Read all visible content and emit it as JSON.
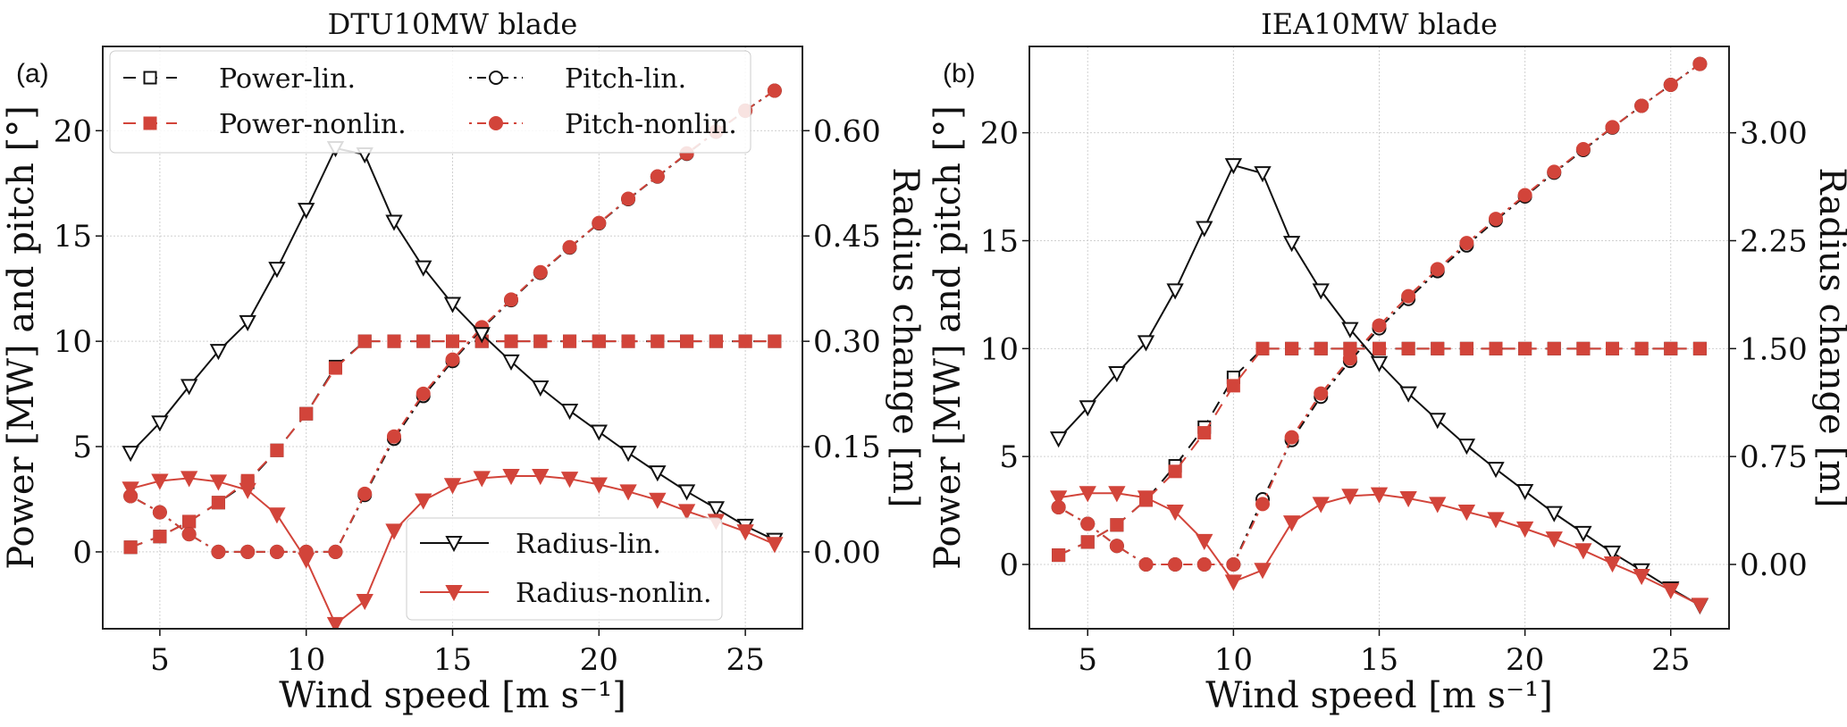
{
  "colors": {
    "lin": "#111111",
    "nonlin": "#d2443a",
    "grid": "#d0d0d0"
  },
  "legend_main": [
    {
      "key": "power_lin",
      "label": "Power-lin."
    },
    {
      "key": "pitch_lin",
      "label": "Pitch-lin."
    },
    {
      "key": "power_nonlin",
      "label": "Power-nonlin."
    },
    {
      "key": "pitch_nonlin",
      "label": "Pitch-nonlin."
    }
  ],
  "legend_radius": [
    {
      "key": "radius_lin",
      "label": "Radius-lin."
    },
    {
      "key": "radius_nonlin",
      "label": "Radius-nonlin."
    }
  ],
  "chart_data": [
    {
      "panel_label": "(a)",
      "title": "DTU10MW  blade",
      "type": "line",
      "xlabel": "Wind speed [m  s⁻¹]",
      "ylabel": "Power [MW] and pitch [°]",
      "ylabel_right": "Radius change [m]",
      "xlim": [
        3.05,
        26.95
      ],
      "ylim": [
        -3.65,
        24
      ],
      "ylim_right": [
        -0.1095,
        0.72
      ],
      "xticks": [
        5,
        10,
        15,
        20,
        25
      ],
      "yticks": [
        0,
        5,
        10,
        15,
        20
      ],
      "yticks_right": [
        "0.00",
        "0.15",
        "0.30",
        "0.45",
        "0.60"
      ],
      "grid": true,
      "legend": "upper / lower-right",
      "x": [
        4,
        5,
        6,
        7,
        8,
        9,
        10,
        11,
        12,
        13,
        14,
        15,
        16,
        17,
        18,
        19,
        20,
        21,
        22,
        23,
        24,
        25,
        26
      ],
      "series": [
        {
          "name": "Power-lin.",
          "key": "power_lin",
          "axis": "left",
          "values": [
            0.22,
            0.73,
            1.44,
            2.34,
            3.3,
            4.82,
            6.56,
            8.8,
            10,
            10,
            10,
            10,
            10,
            10,
            10,
            10,
            10,
            10,
            10,
            10,
            10,
            10,
            10
          ]
        },
        {
          "name": "Power-nonlin.",
          "key": "power_nonlin",
          "axis": "left",
          "values": [
            0.22,
            0.73,
            1.44,
            2.34,
            3.38,
            4.82,
            6.56,
            8.73,
            10,
            10,
            10,
            10,
            10,
            10,
            10,
            10,
            10,
            10,
            10,
            10,
            10,
            10,
            10
          ]
        },
        {
          "name": "Pitch-lin.",
          "key": "pitch_lin",
          "axis": "left",
          "values": [
            2.65,
            1.88,
            0.84,
            0,
            0,
            0,
            0,
            0,
            2.7,
            5.37,
            7.4,
            9.06,
            10.6,
            11.95,
            13.25,
            14.45,
            15.6,
            16.75,
            17.82,
            18.9,
            19.95,
            20.95,
            21.9
          ]
        },
        {
          "name": "Pitch-nonlin.",
          "key": "pitch_nonlin",
          "axis": "left",
          "values": [
            2.65,
            1.88,
            0.84,
            0,
            0,
            0,
            0,
            0,
            2.76,
            5.48,
            7.51,
            9.13,
            10.67,
            11.98,
            13.28,
            14.47,
            15.62,
            16.77,
            17.83,
            18.92,
            19.96,
            20.95,
            21.9
          ]
        },
        {
          "name": "Radius-lin.",
          "key": "radius_lin",
          "axis": "right",
          "values": [
            0.141,
            0.184,
            0.236,
            0.286,
            0.327,
            0.403,
            0.487,
            0.575,
            0.566,
            0.47,
            0.405,
            0.353,
            0.31,
            0.271,
            0.234,
            0.201,
            0.171,
            0.141,
            0.113,
            0.086,
            0.062,
            0.037,
            0.017
          ]
        },
        {
          "name": "Radius-nonlin.",
          "key": "radius_nonlin",
          "axis": "right",
          "values": [
            0.09,
            0.101,
            0.105,
            0.1,
            0.088,
            0.053,
            -0.011,
            -0.103,
            -0.07,
            0.03,
            0.073,
            0.095,
            0.105,
            0.108,
            0.108,
            0.104,
            0.096,
            0.086,
            0.074,
            0.058,
            0.044,
            0.029,
            0.011
          ]
        }
      ]
    },
    {
      "panel_label": "(b)",
      "title": "IEA10MW  blade",
      "type": "line",
      "xlabel": "Wind speed [m  s⁻¹]",
      "ylabel": "Power [MW] and pitch [°]",
      "ylabel_right": "Radius change [m]",
      "xlim": [
        3,
        27
      ],
      "ylim": [
        -2.98,
        24
      ],
      "ylim_right": [
        -0.447,
        3.6
      ],
      "xticks": [
        5,
        10,
        15,
        20,
        25
      ],
      "yticks": [
        0,
        5,
        10,
        15,
        20
      ],
      "yticks_right": [
        "0.00",
        "0.75",
        "1.50",
        "2.25",
        "3.00"
      ],
      "grid": true,
      "x": [
        4,
        5,
        6,
        7,
        8,
        9,
        10,
        11,
        12,
        13,
        14,
        15,
        16,
        17,
        18,
        19,
        20,
        21,
        22,
        23,
        24,
        25,
        26
      ],
      "series": [
        {
          "name": "Power-lin.",
          "key": "power_lin",
          "axis": "left",
          "values": [
            0.43,
            1.04,
            1.83,
            2.98,
            4.57,
            6.36,
            8.67,
            10,
            10,
            10,
            10,
            10,
            10,
            10,
            10,
            10,
            10,
            10,
            10,
            10,
            10,
            10,
            10
          ]
        },
        {
          "name": "Power-nonlin.",
          "key": "power_nonlin",
          "axis": "left",
          "values": [
            0.43,
            1.04,
            1.83,
            2.98,
            4.31,
            6.1,
            8.28,
            10,
            10,
            10,
            10,
            10,
            10,
            10,
            10,
            10,
            10,
            10,
            10,
            10,
            10,
            10,
            10
          ]
        },
        {
          "name": "Pitch-lin.",
          "key": "pitch_lin",
          "axis": "left",
          "values": [
            2.65,
            1.88,
            0.86,
            0,
            0,
            0,
            0,
            3.02,
            5.76,
            7.77,
            9.43,
            10.94,
            12.3,
            13.59,
            14.78,
            15.95,
            17.05,
            18.15,
            19.2,
            20.24,
            21.25,
            22.22,
            23.19
          ]
        },
        {
          "name": "Pitch-nonlin.",
          "key": "pitch_nonlin",
          "axis": "left",
          "values": [
            2.65,
            1.88,
            0.86,
            0,
            0,
            0,
            0,
            2.8,
            5.89,
            7.92,
            9.54,
            11.07,
            12.43,
            13.68,
            14.89,
            16.01,
            17.11,
            18.19,
            19.24,
            20.26,
            21.25,
            22.22,
            23.19
          ]
        },
        {
          "name": "Radius-lin.",
          "key": "radius_lin",
          "axis": "right",
          "values": [
            0.874,
            1.091,
            1.328,
            1.543,
            1.903,
            2.337,
            2.774,
            2.718,
            2.234,
            1.903,
            1.635,
            1.398,
            1.188,
            1.004,
            0.825,
            0.663,
            0.509,
            0.356,
            0.218,
            0.081,
            -0.042,
            -0.168,
            -0.285
          ]
        },
        {
          "name": "Radius-nonlin.",
          "key": "radius_nonlin",
          "axis": "right",
          "values": [
            0.464,
            0.495,
            0.495,
            0.464,
            0.366,
            0.162,
            -0.12,
            -0.039,
            0.291,
            0.42,
            0.476,
            0.486,
            0.459,
            0.42,
            0.366,
            0.314,
            0.249,
            0.179,
            0.098,
            0.006,
            -0.081,
            -0.179,
            -0.282
          ]
        }
      ]
    }
  ]
}
